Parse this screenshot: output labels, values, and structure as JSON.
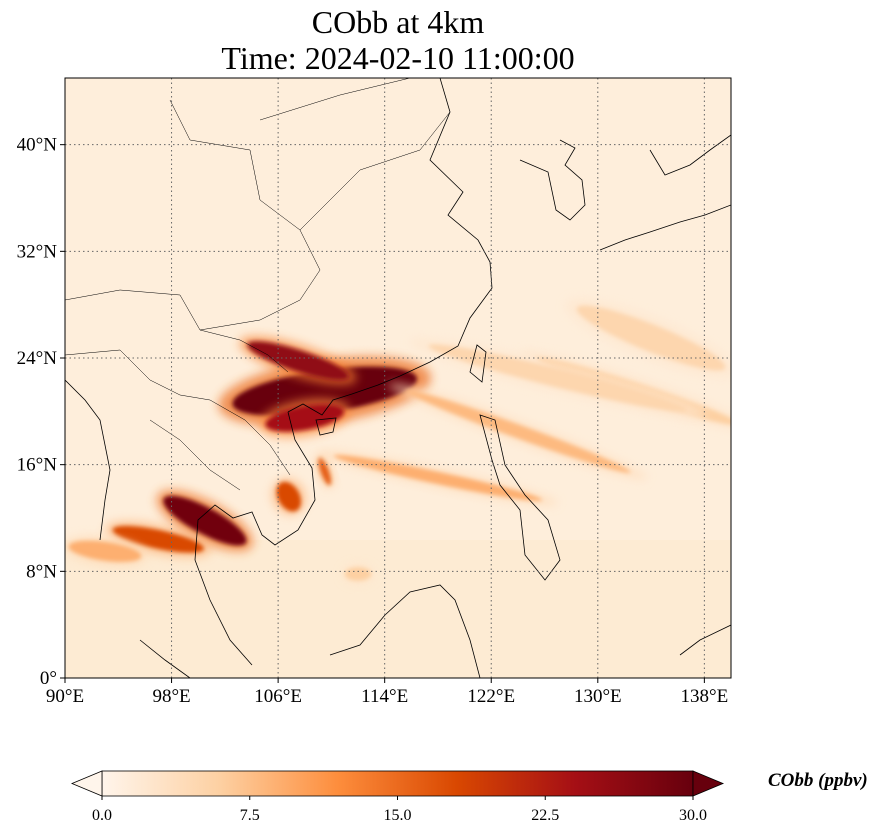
{
  "title": {
    "line1": "CObb at 4km",
    "line2": "Time: 2024-02-10 11:00:00"
  },
  "map": {
    "extent": {
      "lon_min": 90,
      "lon_max": 140,
      "lat_min": 0,
      "lat_max": 45
    },
    "x_ticks": [
      {
        "value": 90,
        "label": "90°E"
      },
      {
        "value": 98,
        "label": "98°E"
      },
      {
        "value": 106,
        "label": "106°E"
      },
      {
        "value": 114,
        "label": "114°E"
      },
      {
        "value": 122,
        "label": "122°E"
      },
      {
        "value": 130,
        "label": "130°E"
      },
      {
        "value": 138,
        "label": "138°E"
      }
    ],
    "y_ticks": [
      {
        "value": 0,
        "label": "0°"
      },
      {
        "value": 8,
        "label": "8°N"
      },
      {
        "value": 16,
        "label": "16°N"
      },
      {
        "value": 24,
        "label": "24°N"
      },
      {
        "value": 32,
        "label": "32°N"
      },
      {
        "value": 40,
        "label": "40°N"
      }
    ],
    "gridlines": "dotted"
  },
  "colorbar": {
    "label": "CObb (ppbv)",
    "min": 0,
    "max": 30,
    "ticks": [
      {
        "value": 0,
        "label": "0.0"
      },
      {
        "value": 7.5,
        "label": "7.5"
      },
      {
        "value": 15,
        "label": "15.0"
      },
      {
        "value": 22.5,
        "label": "22.5"
      },
      {
        "value": 30,
        "label": "30.0"
      }
    ],
    "extend": "both",
    "colormap": [
      "#fff5eb",
      "#fdd0a2",
      "#fd8d3c",
      "#d94801",
      "#a50f15",
      "#67000d"
    ]
  },
  "plumes": [
    {
      "name": "south-china-plume",
      "lon": 109.5,
      "lat": 21.5,
      "len_deg": 14,
      "wid_deg": 3.2,
      "angle": -8,
      "value": 30
    },
    {
      "name": "guangxi-plume",
      "lon": 107.5,
      "lat": 23.8,
      "len_deg": 8,
      "wid_deg": 1.6,
      "angle": 18,
      "value": 26
    },
    {
      "name": "gulf-tonkin-plume",
      "lon": 108.0,
      "lat": 19.5,
      "len_deg": 6,
      "wid_deg": 1.8,
      "angle": -10,
      "value": 24
    },
    {
      "name": "thailand-plume",
      "lon": 100.5,
      "lat": 11.8,
      "len_deg": 7,
      "wid_deg": 2.0,
      "angle": 28,
      "value": 29
    },
    {
      "name": "west-band-plume",
      "lon": 97.0,
      "lat": 10.4,
      "len_deg": 7,
      "wid_deg": 1.4,
      "angle": 12,
      "value": 18
    },
    {
      "name": "vietnam-plume",
      "lon": 106.8,
      "lat": 13.6,
      "len_deg": 2.4,
      "wid_deg": 1.6,
      "angle": 60,
      "value": 18
    },
    {
      "name": "central-vn-streak",
      "lon": 109.5,
      "lat": 15.5,
      "len_deg": 2.2,
      "wid_deg": 0.6,
      "angle": 70,
      "value": 16
    },
    {
      "name": "andaman-blob",
      "lon": 93.0,
      "lat": 9.5,
      "len_deg": 5.5,
      "wid_deg": 1.4,
      "angle": 8,
      "value": 9
    },
    {
      "name": "scs-streak-1",
      "lon": 118.0,
      "lat": 15.0,
      "len_deg": 16,
      "wid_deg": 0.9,
      "angle": 12,
      "value": 9
    },
    {
      "name": "scs-streak-2",
      "lon": 124.0,
      "lat": 18.5,
      "len_deg": 18,
      "wid_deg": 1.0,
      "angle": 20,
      "value": 8
    },
    {
      "name": "pacific-streak",
      "lon": 133.0,
      "lat": 21.5,
      "len_deg": 16,
      "wid_deg": 1.2,
      "angle": 18,
      "value": 6
    },
    {
      "name": "taiwan-streak",
      "lon": 127.0,
      "lat": 22.5,
      "len_deg": 20,
      "wid_deg": 1.4,
      "angle": 14,
      "value": 5
    },
    {
      "name": "northeast-streak",
      "lon": 134.0,
      "lat": 25.5,
      "len_deg": 12,
      "wid_deg": 2.0,
      "angle": 22,
      "value": 5
    },
    {
      "name": "malaysia-blob",
      "lon": 112.0,
      "lat": 7.8,
      "len_deg": 2,
      "wid_deg": 1,
      "angle": 0,
      "value": 6
    }
  ]
}
